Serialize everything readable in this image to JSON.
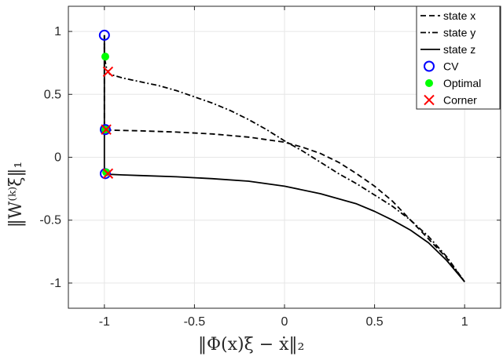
{
  "chart_data": {
    "type": "line",
    "xlabel": "‖Φ(x)ξ − ẋ‖₂",
    "ylabel": "‖W⁽ᵏ⁾ξ‖₁",
    "xlim": [
      -1.2,
      1.2
    ],
    "ylim": [
      -1.2,
      1.2
    ],
    "xticks": [
      -1,
      -0.5,
      0,
      0.5,
      1
    ],
    "xtick_labels": [
      "-1",
      "-0.5",
      "0",
      "0.5",
      "1"
    ],
    "yticks": [
      -1,
      -0.5,
      0,
      0.5,
      1
    ],
    "ytick_labels": [
      "-1",
      "-0.5",
      "0",
      "0.5",
      "1"
    ],
    "grid": true,
    "legend_position": "top-right",
    "series": [
      {
        "name": "state x",
        "style": "dashed",
        "color": "#000000",
        "x": [
          -1.0,
          -1.0,
          -1.0,
          -0.99,
          -0.98,
          -0.96,
          -0.9,
          -0.8,
          -0.6,
          -0.4,
          -0.2,
          0.0,
          0.1,
          0.2,
          0.3,
          0.4,
          0.5,
          0.6,
          0.7,
          0.8,
          0.9,
          1.0
        ],
        "y": [
          0.97,
          0.6,
          0.23,
          0.222,
          0.218,
          0.215,
          0.213,
          0.21,
          0.2,
          0.185,
          0.16,
          0.12,
          0.08,
          0.03,
          -0.04,
          -0.13,
          -0.23,
          -0.35,
          -0.5,
          -0.65,
          -0.8,
          -0.99
        ]
      },
      {
        "name": "state y",
        "style": "dash-dot",
        "color": "#000000",
        "x": [
          -1.0,
          -1.0,
          -0.99,
          -0.98,
          -0.97,
          -0.9,
          -0.8,
          -0.7,
          -0.6,
          -0.5,
          -0.4,
          -0.3,
          -0.2,
          -0.1,
          0.0,
          0.1,
          0.2,
          0.3,
          0.4,
          0.5,
          0.6,
          0.7,
          0.8,
          0.9,
          1.0
        ],
        "y": [
          0.97,
          0.8,
          0.72,
          0.68,
          0.66,
          0.63,
          0.6,
          0.57,
          0.53,
          0.48,
          0.43,
          0.37,
          0.3,
          0.22,
          0.13,
          0.05,
          -0.04,
          -0.13,
          -0.21,
          -0.3,
          -0.39,
          -0.5,
          -0.63,
          -0.79,
          -0.99
        ]
      },
      {
        "name": "state z",
        "style": "solid",
        "color": "#000000",
        "x": [
          -1.0,
          -1.0,
          -1.0,
          -0.99,
          -0.98,
          -0.9,
          -0.8,
          -0.6,
          -0.4,
          -0.2,
          0.0,
          0.2,
          0.4,
          0.5,
          0.6,
          0.7,
          0.8,
          0.9,
          1.0
        ],
        "y": [
          0.97,
          0.4,
          -0.12,
          -0.13,
          -0.135,
          -0.14,
          -0.145,
          -0.155,
          -0.17,
          -0.19,
          -0.23,
          -0.29,
          -0.37,
          -0.43,
          -0.5,
          -0.58,
          -0.68,
          -0.82,
          -0.99
        ]
      },
      {
        "name": "CV",
        "style": "marker-circle-open",
        "color": "#0000ff",
        "x": [
          -1.0,
          -0.995,
          -0.995
        ],
        "y": [
          0.97,
          0.22,
          -0.13
        ]
      },
      {
        "name": "Optimal",
        "style": "marker-circle-filled",
        "color": "#00ff00",
        "x": [
          -0.995,
          -0.995,
          -0.99
        ],
        "y": [
          0.8,
          0.22,
          -0.12
        ]
      },
      {
        "name": "Corner",
        "style": "marker-x",
        "color": "#ff0000",
        "x": [
          -0.98,
          -0.99,
          -0.98
        ],
        "y": [
          0.68,
          0.22,
          -0.13
        ]
      }
    ]
  }
}
